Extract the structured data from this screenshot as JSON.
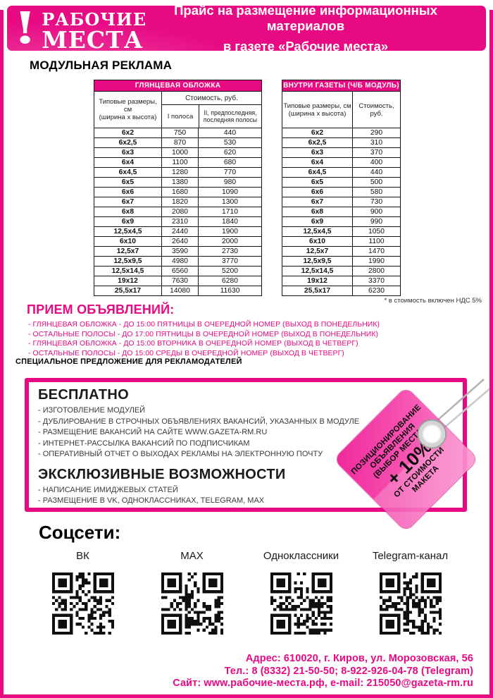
{
  "colors": {
    "magenta": "#e70a83",
    "tag_pink": "#f437a5"
  },
  "header": {
    "logo_mark": "!",
    "logo_line1": "РАБОЧИЕ",
    "logo_line2": "МЕСТА",
    "title_line1": "Прайс на размещение информационных материалов",
    "title_line2": "в газете «Рабочие места»"
  },
  "modular_title": "МОДУЛЬНАЯ РЕКЛАМА",
  "table_glossy": {
    "title": "ГЛЯНЦЕВАЯ ОБЛОЖКА",
    "col_size_line1": "Типовые размеры, см",
    "col_size_line2": "(ширина x высота)",
    "col_cost": "Стоимость, руб.",
    "col_band1": "I полоса",
    "col_band2": "II, предпоследняя, последняя полосы",
    "rows": [
      [
        "6x2",
        "750",
        "440"
      ],
      [
        "6x2,5",
        "870",
        "530"
      ],
      [
        "6x3",
        "1000",
        "620"
      ],
      [
        "6x4",
        "1100",
        "680"
      ],
      [
        "6x4,5",
        "1280",
        "770"
      ],
      [
        "6x5",
        "1380",
        "980"
      ],
      [
        "6x6",
        "1680",
        "1090"
      ],
      [
        "6x7",
        "1820",
        "1300"
      ],
      [
        "6x8",
        "2080",
        "1710"
      ],
      [
        "6x9",
        "2310",
        "1840"
      ],
      [
        "12,5x4,5",
        "2440",
        "1900"
      ],
      [
        "6x10",
        "2640",
        "2000"
      ],
      [
        "12,5x7",
        "3590",
        "2730"
      ],
      [
        "12,5x9,5",
        "4980",
        "3770"
      ],
      [
        "12,5x14,5",
        "6560",
        "5200"
      ],
      [
        "19x12",
        "7630",
        "6280"
      ],
      [
        "25,5x17",
        "14080",
        "11630"
      ]
    ]
  },
  "table_bw": {
    "title": "ВНУТРИ ГАЗЕТЫ (Ч/Б МОДУЛЬ)",
    "col_size_line1": "Типовые размеры, см",
    "col_size_line2": "(ширина x высота)",
    "col_cost_line1": "Стоимость,",
    "col_cost_line2": "руб.",
    "rows": [
      [
        "6x2",
        "290"
      ],
      [
        "6x2,5",
        "310"
      ],
      [
        "6x3",
        "370"
      ],
      [
        "6x4",
        "400"
      ],
      [
        "6x4,5",
        "440"
      ],
      [
        "6x5",
        "500"
      ],
      [
        "6x6",
        "580"
      ],
      [
        "6x7",
        "730"
      ],
      [
        "6x8",
        "900"
      ],
      [
        "6x9",
        "990"
      ],
      [
        "12,5x4,5",
        "1050"
      ],
      [
        "6x10",
        "1100"
      ],
      [
        "12,5x7",
        "1470"
      ],
      [
        "12,5x9,5",
        "1990"
      ],
      [
        "12,5x14,5",
        "2800"
      ],
      [
        "19x12",
        "3370"
      ],
      [
        "25,5x17",
        "6230"
      ]
    ]
  },
  "vat_note": "* в стоимость включен НДС 5%",
  "accepting": {
    "title": "ПРИЕМ ОБЪЯВЛЕНИЙ:",
    "items": [
      "- ГЛЯНЦЕВАЯ ОБЛОЖКА - ДО 15:00 ПЯТНИЦЫ В ОЧЕРЕДНОЙ НОМЕР (ВЫХОД В ПОНЕДЕЛЬНИК)",
      "- ОСТАЛЬНЫЕ ПОЛОСЫ - ДО 17:00 ПЯТНИЦЫ В ОЧЕРЕДНОЙ НОМЕР (ВЫХОД В ПОНЕДЕЛЬНИК)",
      "- ГЛЯНЦЕВАЯ ОБЛОЖКА - ДО 15:00 ВТОРНИКА В ОЧЕРЕДНОЙ НОМЕР (ВЫХОД В ЧЕТВЕРГ)",
      "- ОСТАЛЬНЫЕ ПОЛОСЫ - ДО 15:00 СРЕДЫ В ОЧЕРЕДНОЙ НОМЕР (ВЫХОД В ЧЕТВЕРГ)"
    ]
  },
  "special_offer_label": "СПЕЦИАЛЬНОЕ ПРЕДЛОЖЕНИЕ ДЛЯ РЕКЛАМОДАТЕЛЕЙ",
  "free_box": {
    "free_title": "БЕСПЛАТНО",
    "free_items": [
      "- ИЗГОТОВЛЕНИЕ МОДУЛЕЙ",
      "- ДУБЛИРОВАНИЕ В СТРОЧНЫХ ОБЪЯВЛЕНИЯХ ВАКАНСИЙ, УКАЗАННЫХ В МОДУЛЕ",
      "- РАЗМЕЩЕНИЕ ВАКАНСИЙ НА САЙТЕ WWW.GAZETA-RM.RU",
      "- ИНТЕРНЕТ-РАССЫЛКА ВАКАНСИЙ ПО ПОДПИСЧИКАМ",
      "- ОПЕРАТИВНЫЙ ОТЧЕТ О ВЫХОДАХ РЕКЛАМЫ НА ЭЛЕКТРОННУЮ ПОЧТУ"
    ],
    "exclusive_title": "ЭКСКЛЮЗИВНЫЕ ВОЗМОЖНОСТИ",
    "exclusive_items": [
      "- НАПИСАНИЕ ИМИДЖЕВЫХ СТАТЕЙ",
      "- РАЗМЕЩЕНИЕ В VK, ОДНОКЛАССНИКАХ, TELEGRAM, MAX"
    ]
  },
  "price_tag": {
    "line1": "ПОЗИЦИОНИРОВАНИЕ",
    "line2": "ОБЪЯВЛЕНИЯ",
    "line3": "(ВЫБОР МЕСТА)",
    "percent": "+ 10%",
    "line4": "ОТ СТОИМОСТИ МАКЕТА"
  },
  "social": {
    "title": "Соцсети:",
    "networks": [
      "ВК",
      "MAX",
      "Одноклассники",
      "Telegram-канал"
    ]
  },
  "footer": {
    "line1": "Адрес: 610020, г. Киров, ул. Морозовская, 56",
    "line2": "Тел.: 8 (8332) 21-50-50; 8-922-926-04-78 (Telegram)",
    "line3": "Сайт: www.рабочие-места.рф, e-mail: 215050@gazeta-rm.ru"
  }
}
